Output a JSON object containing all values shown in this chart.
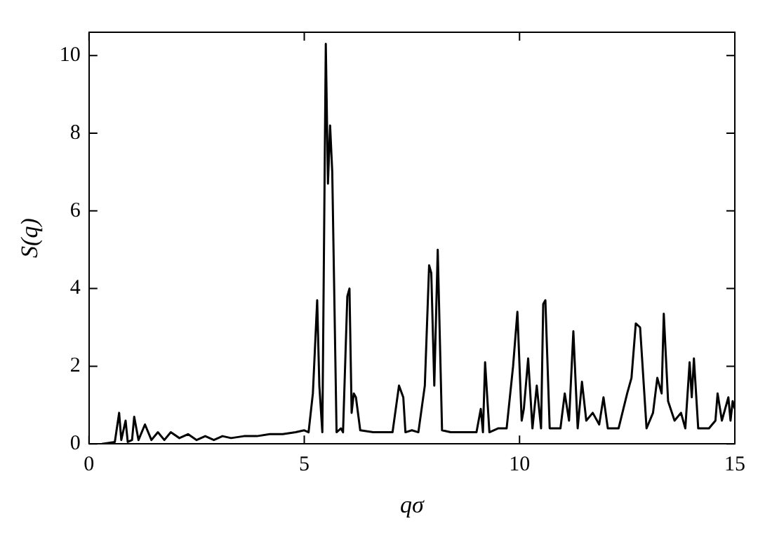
{
  "chart_data": {
    "type": "line",
    "xlabel": "qσ",
    "ylabel": "S(q)",
    "xlim": [
      0,
      15
    ],
    "xticks": [
      0,
      5,
      10,
      15
    ],
    "ylim": [
      0,
      10.6
    ],
    "yticks": [
      0,
      2,
      4,
      6,
      8,
      10
    ],
    "grid": false,
    "legend": false,
    "marker": "none",
    "line_style": "solid",
    "series": [
      {
        "color": "#000000",
        "x": [
          0.3,
          0.6,
          0.7,
          0.75,
          0.85,
          0.9,
          1.0,
          1.05,
          1.15,
          1.3,
          1.45,
          1.6,
          1.75,
          1.9,
          2.1,
          2.3,
          2.5,
          2.7,
          2.9,
          3.1,
          3.3,
          3.6,
          3.9,
          4.2,
          4.5,
          4.8,
          5.0,
          5.1,
          5.2,
          5.3,
          5.35,
          5.42,
          5.5,
          5.55,
          5.6,
          5.65,
          5.75,
          5.85,
          5.9,
          6.0,
          6.05,
          6.1,
          6.15,
          6.2,
          6.3,
          6.6,
          6.9,
          7.05,
          7.2,
          7.3,
          7.35,
          7.5,
          7.65,
          7.8,
          7.9,
          7.95,
          8.02,
          8.1,
          8.2,
          8.4,
          8.7,
          9.0,
          9.1,
          9.15,
          9.2,
          9.3,
          9.5,
          9.7,
          9.85,
          9.95,
          10.05,
          10.1,
          10.2,
          10.3,
          10.4,
          10.5,
          10.55,
          10.6,
          10.7,
          10.95,
          11.05,
          11.15,
          11.25,
          11.35,
          11.45,
          11.55,
          11.7,
          11.85,
          11.95,
          12.05,
          12.3,
          12.5,
          12.6,
          12.7,
          12.8,
          12.95,
          13.1,
          13.2,
          13.3,
          13.35,
          13.45,
          13.6,
          13.75,
          13.85,
          13.95,
          14.0,
          14.05,
          14.15,
          14.4,
          14.55,
          14.6,
          14.7,
          14.85,
          14.9,
          14.95,
          15.0
        ],
        "values": [
          0,
          0.05,
          0.8,
          0.1,
          0.6,
          0.05,
          0.1,
          0.7,
          0.1,
          0.5,
          0.1,
          0.3,
          0.1,
          0.3,
          0.15,
          0.25,
          0.1,
          0.2,
          0.1,
          0.2,
          0.15,
          0.2,
          0.2,
          0.25,
          0.25,
          0.3,
          0.35,
          0.3,
          1.3,
          3.7,
          1.5,
          0.3,
          10.3,
          6.7,
          8.2,
          7.0,
          0.3,
          0.4,
          0.3,
          3.8,
          4.0,
          0.8,
          1.3,
          1.2,
          0.35,
          0.3,
          0.3,
          0.3,
          1.5,
          1.2,
          0.3,
          0.35,
          0.3,
          1.5,
          4.6,
          4.4,
          1.5,
          5.0,
          0.35,
          0.3,
          0.3,
          0.3,
          0.9,
          0.3,
          2.1,
          0.3,
          0.4,
          0.4,
          2.0,
          3.4,
          0.6,
          0.9,
          2.2,
          0.4,
          1.5,
          0.4,
          3.6,
          3.7,
          0.4,
          0.4,
          1.3,
          0.6,
          2.9,
          0.4,
          1.6,
          0.6,
          0.8,
          0.5,
          1.2,
          0.4,
          0.4,
          1.3,
          1.7,
          3.1,
          3.0,
          0.4,
          0.8,
          1.7,
          1.3,
          3.35,
          1.1,
          0.6,
          0.8,
          0.4,
          2.1,
          1.2,
          2.2,
          0.4,
          0.4,
          0.6,
          1.3,
          0.6,
          1.2,
          0.6,
          1.1,
          0.9
        ]
      }
    ]
  }
}
